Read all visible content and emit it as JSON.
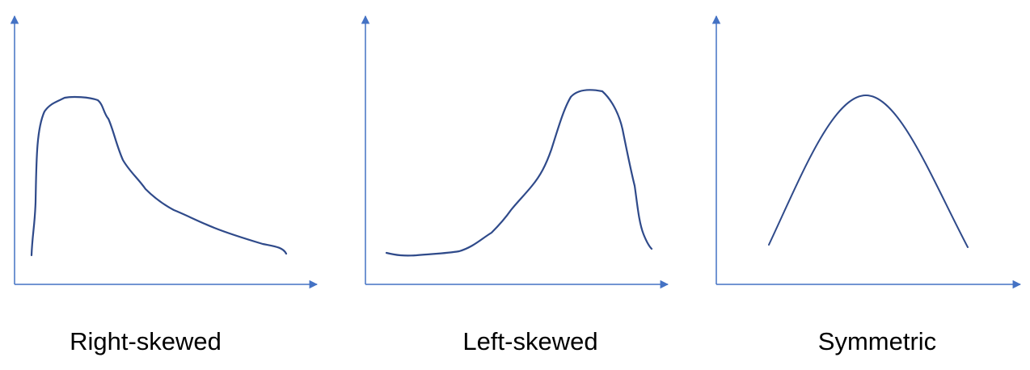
{
  "panels": [
    {
      "caption": "Right-skewed",
      "shape": "right-skewed"
    },
    {
      "caption": "Left-skewed",
      "shape": "left-skewed"
    },
    {
      "caption": "Symmetric",
      "shape": "symmetric"
    }
  ],
  "colors": {
    "axis": "#4472C4",
    "curve": "#2F4A8A",
    "text": "#000000",
    "background": "#FFFFFF"
  }
}
